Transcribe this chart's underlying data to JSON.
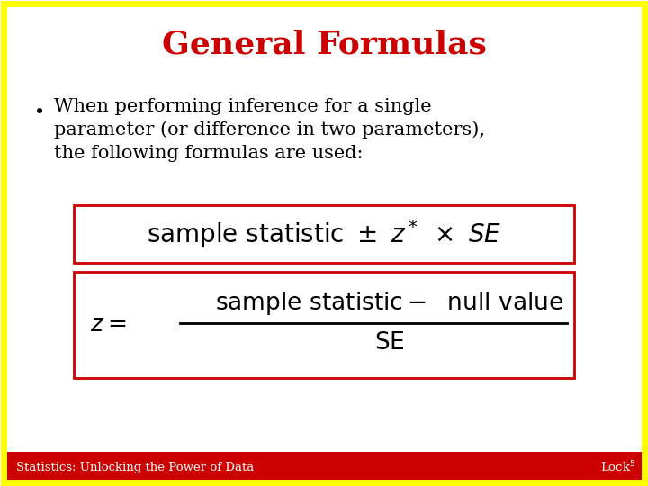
{
  "title": "General Formulas",
  "title_color": "#CC0000",
  "title_fontsize": 26,
  "bullet_line1": "When performing inference for a single",
  "bullet_line2": "parameter (or difference in two parameters),",
  "bullet_line3": "the following formulas are used:",
  "footer_text": "Statistics: Unlocking the Power of Data",
  "footer_bg": "#CC0000",
  "footer_text_color": "#FFFFFF",
  "border_color": "#FFFF00",
  "box_border_color": "#CC0000",
  "background_color": "#FFFFFF",
  "text_fontsize": 15,
  "formula1_fontsize": 20,
  "formula2_fontsize": 19
}
